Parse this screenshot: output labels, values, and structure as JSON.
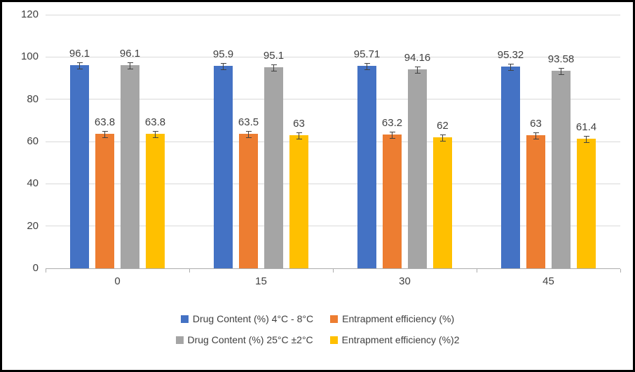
{
  "chart_data": {
    "type": "bar",
    "title": "",
    "xlabel": "",
    "ylabel": "",
    "categories": [
      "0",
      "15",
      "30",
      "45"
    ],
    "series": [
      {
        "name": "Drug Content (%) 4°C - 8°C",
        "color": "#4472C4",
        "values": [
          96.1,
          95.9,
          95.71,
          95.32
        ],
        "labels": [
          "96.1",
          "95.9",
          "95.71",
          "95.32"
        ]
      },
      {
        "name": "Entrapment efficiency (%)",
        "color": "#ED7D31",
        "values": [
          63.8,
          63.5,
          63.2,
          63
        ],
        "labels": [
          "63.8",
          "63.5",
          "63.2",
          "63"
        ]
      },
      {
        "name": "Drug Content (%) 25°C ±2°C",
        "color": "#A5A5A5",
        "values": [
          96.1,
          95.1,
          94.16,
          93.58
        ],
        "labels": [
          "96.1",
          "95.1",
          "94.16",
          "93.58"
        ]
      },
      {
        "name": "Entrapment efficiency (%)2",
        "color": "#FFC000",
        "values": [
          63.8,
          63,
          62,
          61.4
        ],
        "labels": [
          "63.8",
          "63",
          "62",
          "61.4"
        ]
      }
    ],
    "ylim": [
      0,
      120
    ],
    "yticks": [
      0,
      20,
      40,
      60,
      80,
      100,
      120
    ],
    "grid": true,
    "error_bars": true,
    "legend_position": "bottom",
    "legend_rows": [
      [
        0,
        1
      ],
      [
        2,
        3
      ]
    ]
  },
  "colors": {
    "background": "#FFFFFF",
    "gridline": "#D9D9D9",
    "axis": "#ADADAD",
    "text": "#404040",
    "frame_border": "#000000"
  }
}
